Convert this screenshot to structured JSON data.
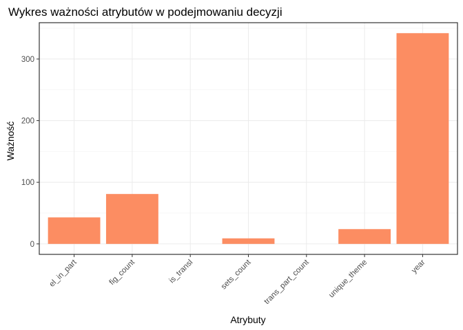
{
  "chart_data": {
    "type": "bar",
    "title": "Wykres ważności atrybutów w podejmowaniu decyzji",
    "xlabel": "Atrybuty",
    "ylabel": "Ważność",
    "categories": [
      "el_in_part",
      "fig_count",
      "is_transl",
      "sets_count",
      "trans_part_count",
      "unique_theme",
      "year"
    ],
    "values": [
      43,
      81,
      0,
      9,
      0,
      24,
      342
    ],
    "yticks": [
      0,
      100,
      200,
      300
    ],
    "ylim": [
      -17,
      359
    ],
    "bar_color": "#FC8D62",
    "grid": true,
    "legend": "none"
  }
}
